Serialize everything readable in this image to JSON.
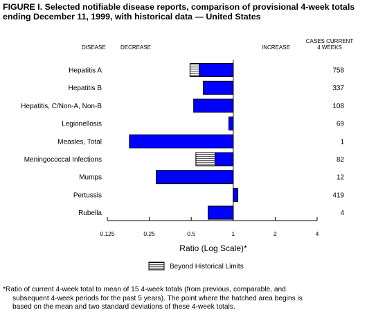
{
  "title": {
    "line1": "FIGURE I. Selected notifiable disease reports, comparison of provisional 4-week totals",
    "line2": "ending December 11, 1999, with historical data — United States"
  },
  "headers": {
    "disease": "DISEASE",
    "decrease": "DECREASE",
    "increase": "INCREASE",
    "cases_line1": "CASES CURRENT",
    "cases_line2": "4 WEEKS"
  },
  "footnote": {
    "line1": "*Ratio of current 4-week total to mean of 15 4-week totals (from previous, comparable, and",
    "line2": "subsequent 4-week periods for the past 5 years). The point where the hatched area begins is",
    "line3": "based on the mean and two standard deviations of these 4-week totals."
  },
  "colors": {
    "bar": "#0000ff",
    "hatch_fill": "#ffffff",
    "hatch_lines": "#000000"
  },
  "chart_data": {
    "type": "bar",
    "orientation": "horizontal",
    "xscale": "log2",
    "baseline": 1,
    "xlabel": "Ratio (Log Scale)*",
    "xlim": [
      0.125,
      4
    ],
    "xticks": [
      0.125,
      0.25,
      0.5,
      1,
      2,
      4
    ],
    "xtick_labels": [
      "0.125",
      "0.25",
      "0.5",
      "1",
      "2",
      "4"
    ],
    "legend": {
      "label": "Beyond Historical Limits",
      "position": "bottom"
    },
    "categories": [
      "Hepatitis A",
      "Hepatitis B",
      "Hepatitis, C/Non-A, Non-B",
      "Legionellosis",
      "Measles, Total",
      "Meningococcal Infections",
      "Mumps",
      "Pertussis",
      "Rubella"
    ],
    "ratios": [
      0.49,
      0.61,
      0.52,
      0.93,
      0.18,
      0.54,
      0.28,
      1.08,
      0.66
    ],
    "beyond_historical_limits_from": [
      0.57,
      null,
      null,
      null,
      null,
      0.74,
      null,
      null,
      null
    ],
    "cases_current_4_weeks": [
      "758",
      "337",
      "108",
      "69",
      "1",
      "82",
      "12",
      "419",
      "4"
    ]
  }
}
